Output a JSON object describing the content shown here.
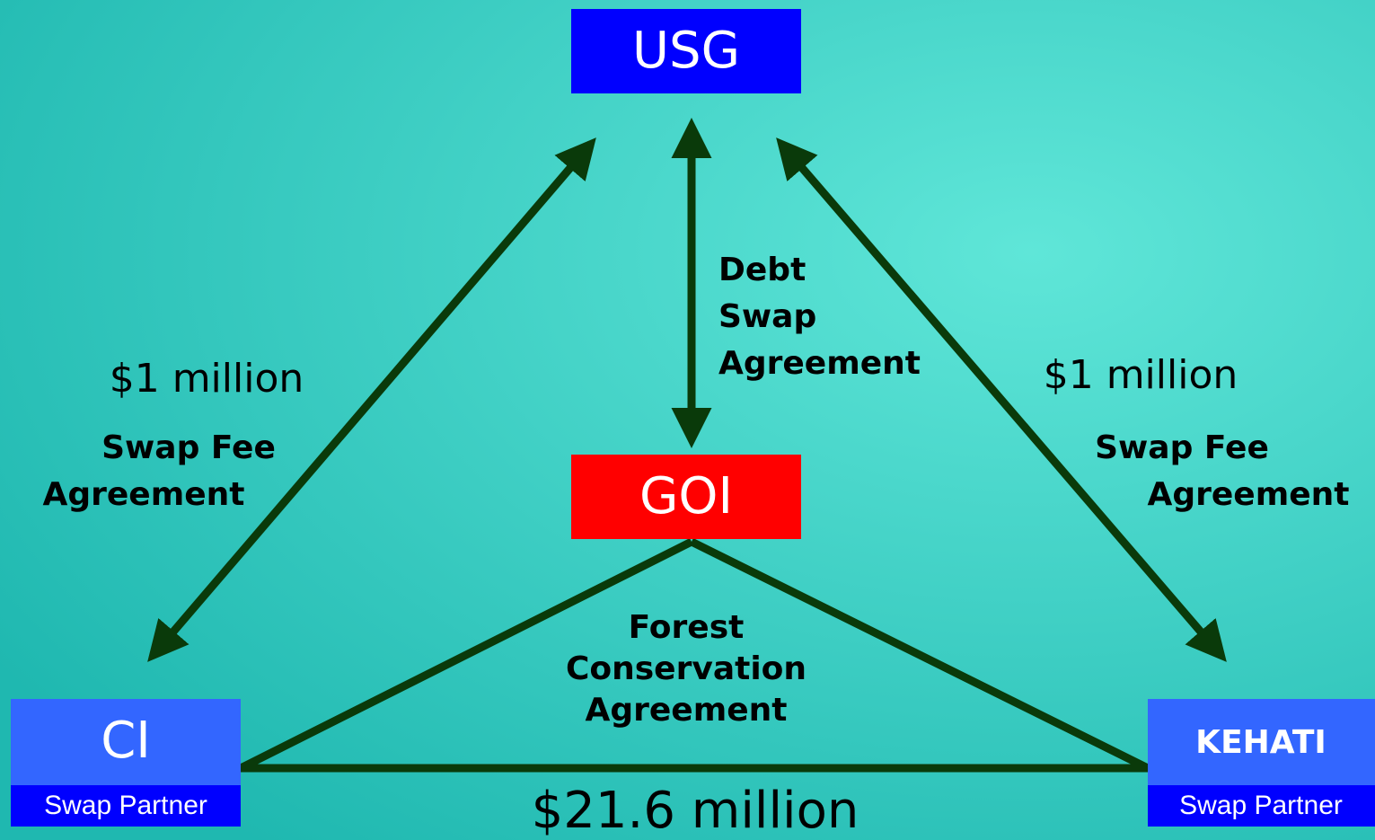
{
  "nodes": [
    {
      "label": "USG"
    },
    {
      "label": "GOI"
    },
    {
      "label": "CI",
      "sublabel": "Swap Partner"
    },
    {
      "label": "KEHATI",
      "sublabel": "Swap Partner"
    }
  ],
  "edges": [
    {
      "amount": "$1 million",
      "label": [
        "Swap Fee",
        "Agreement"
      ]
    },
    {
      "label": [
        "Debt",
        "Swap",
        "Agreement"
      ]
    },
    {
      "amount": "$1 million",
      "label": [
        "Swap Fee",
        "Agreement"
      ]
    },
    {
      "label": [
        "Forest",
        "Conservation",
        "Agreement"
      ]
    },
    {
      "amount": "$21.6 million"
    }
  ]
}
